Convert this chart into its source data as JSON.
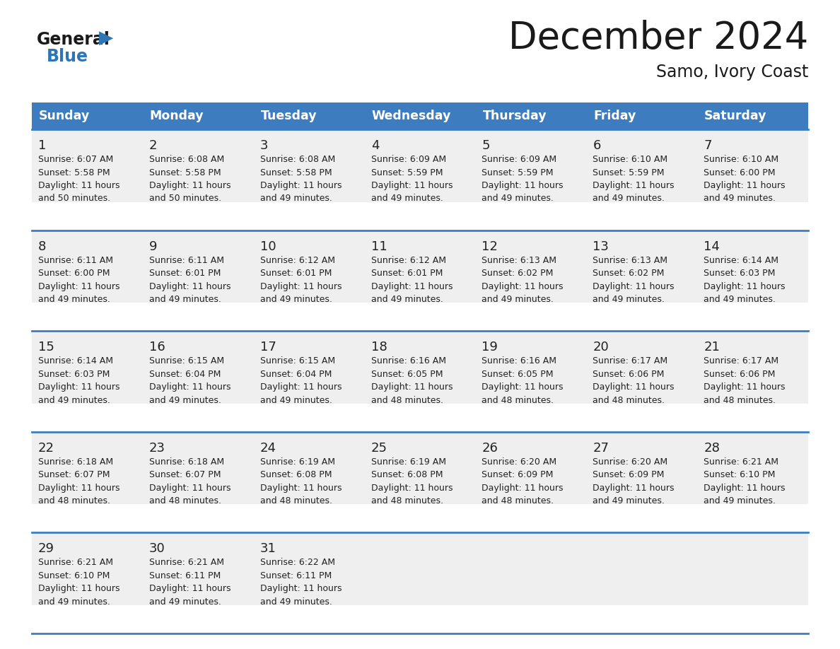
{
  "title": "December 2024",
  "subtitle": "Samo, Ivory Coast",
  "days_of_week": [
    "Sunday",
    "Monday",
    "Tuesday",
    "Wednesday",
    "Thursday",
    "Friday",
    "Saturday"
  ],
  "header_bg": "#3d7dbf",
  "header_text": "#FFFFFF",
  "row_bg": "#EFEFEF",
  "border_color": "#3d7dbf",
  "title_color": "#1a1a1a",
  "subtitle_color": "#1a1a1a",
  "day_number_color": "#222222",
  "cell_text_color": "#222222",
  "logo_general_color": "#1a1a1a",
  "logo_blue_color": "#2E75B6",
  "weeks": [
    [
      {
        "day": 1,
        "sunrise": "6:07 AM",
        "sunset": "5:58 PM",
        "daylight_hours": 11,
        "daylight_minutes": 50
      },
      {
        "day": 2,
        "sunrise": "6:08 AM",
        "sunset": "5:58 PM",
        "daylight_hours": 11,
        "daylight_minutes": 50
      },
      {
        "day": 3,
        "sunrise": "6:08 AM",
        "sunset": "5:58 PM",
        "daylight_hours": 11,
        "daylight_minutes": 49
      },
      {
        "day": 4,
        "sunrise": "6:09 AM",
        "sunset": "5:59 PM",
        "daylight_hours": 11,
        "daylight_minutes": 49
      },
      {
        "day": 5,
        "sunrise": "6:09 AM",
        "sunset": "5:59 PM",
        "daylight_hours": 11,
        "daylight_minutes": 49
      },
      {
        "day": 6,
        "sunrise": "6:10 AM",
        "sunset": "5:59 PM",
        "daylight_hours": 11,
        "daylight_minutes": 49
      },
      {
        "day": 7,
        "sunrise": "6:10 AM",
        "sunset": "6:00 PM",
        "daylight_hours": 11,
        "daylight_minutes": 49
      }
    ],
    [
      {
        "day": 8,
        "sunrise": "6:11 AM",
        "sunset": "6:00 PM",
        "daylight_hours": 11,
        "daylight_minutes": 49
      },
      {
        "day": 9,
        "sunrise": "6:11 AM",
        "sunset": "6:01 PM",
        "daylight_hours": 11,
        "daylight_minutes": 49
      },
      {
        "day": 10,
        "sunrise": "6:12 AM",
        "sunset": "6:01 PM",
        "daylight_hours": 11,
        "daylight_minutes": 49
      },
      {
        "day": 11,
        "sunrise": "6:12 AM",
        "sunset": "6:01 PM",
        "daylight_hours": 11,
        "daylight_minutes": 49
      },
      {
        "day": 12,
        "sunrise": "6:13 AM",
        "sunset": "6:02 PM",
        "daylight_hours": 11,
        "daylight_minutes": 49
      },
      {
        "day": 13,
        "sunrise": "6:13 AM",
        "sunset": "6:02 PM",
        "daylight_hours": 11,
        "daylight_minutes": 49
      },
      {
        "day": 14,
        "sunrise": "6:14 AM",
        "sunset": "6:03 PM",
        "daylight_hours": 11,
        "daylight_minutes": 49
      }
    ],
    [
      {
        "day": 15,
        "sunrise": "6:14 AM",
        "sunset": "6:03 PM",
        "daylight_hours": 11,
        "daylight_minutes": 49
      },
      {
        "day": 16,
        "sunrise": "6:15 AM",
        "sunset": "6:04 PM",
        "daylight_hours": 11,
        "daylight_minutes": 49
      },
      {
        "day": 17,
        "sunrise": "6:15 AM",
        "sunset": "6:04 PM",
        "daylight_hours": 11,
        "daylight_minutes": 49
      },
      {
        "day": 18,
        "sunrise": "6:16 AM",
        "sunset": "6:05 PM",
        "daylight_hours": 11,
        "daylight_minutes": 48
      },
      {
        "day": 19,
        "sunrise": "6:16 AM",
        "sunset": "6:05 PM",
        "daylight_hours": 11,
        "daylight_minutes": 48
      },
      {
        "day": 20,
        "sunrise": "6:17 AM",
        "sunset": "6:06 PM",
        "daylight_hours": 11,
        "daylight_minutes": 48
      },
      {
        "day": 21,
        "sunrise": "6:17 AM",
        "sunset": "6:06 PM",
        "daylight_hours": 11,
        "daylight_minutes": 48
      }
    ],
    [
      {
        "day": 22,
        "sunrise": "6:18 AM",
        "sunset": "6:07 PM",
        "daylight_hours": 11,
        "daylight_minutes": 48
      },
      {
        "day": 23,
        "sunrise": "6:18 AM",
        "sunset": "6:07 PM",
        "daylight_hours": 11,
        "daylight_minutes": 48
      },
      {
        "day": 24,
        "sunrise": "6:19 AM",
        "sunset": "6:08 PM",
        "daylight_hours": 11,
        "daylight_minutes": 48
      },
      {
        "day": 25,
        "sunrise": "6:19 AM",
        "sunset": "6:08 PM",
        "daylight_hours": 11,
        "daylight_minutes": 48
      },
      {
        "day": 26,
        "sunrise": "6:20 AM",
        "sunset": "6:09 PM",
        "daylight_hours": 11,
        "daylight_minutes": 48
      },
      {
        "day": 27,
        "sunrise": "6:20 AM",
        "sunset": "6:09 PM",
        "daylight_hours": 11,
        "daylight_minutes": 49
      },
      {
        "day": 28,
        "sunrise": "6:21 AM",
        "sunset": "6:10 PM",
        "daylight_hours": 11,
        "daylight_minutes": 49
      }
    ],
    [
      {
        "day": 29,
        "sunrise": "6:21 AM",
        "sunset": "6:10 PM",
        "daylight_hours": 11,
        "daylight_minutes": 49
      },
      {
        "day": 30,
        "sunrise": "6:21 AM",
        "sunset": "6:11 PM",
        "daylight_hours": 11,
        "daylight_minutes": 49
      },
      {
        "day": 31,
        "sunrise": "6:22 AM",
        "sunset": "6:11 PM",
        "daylight_hours": 11,
        "daylight_minutes": 49
      },
      null,
      null,
      null,
      null
    ]
  ]
}
